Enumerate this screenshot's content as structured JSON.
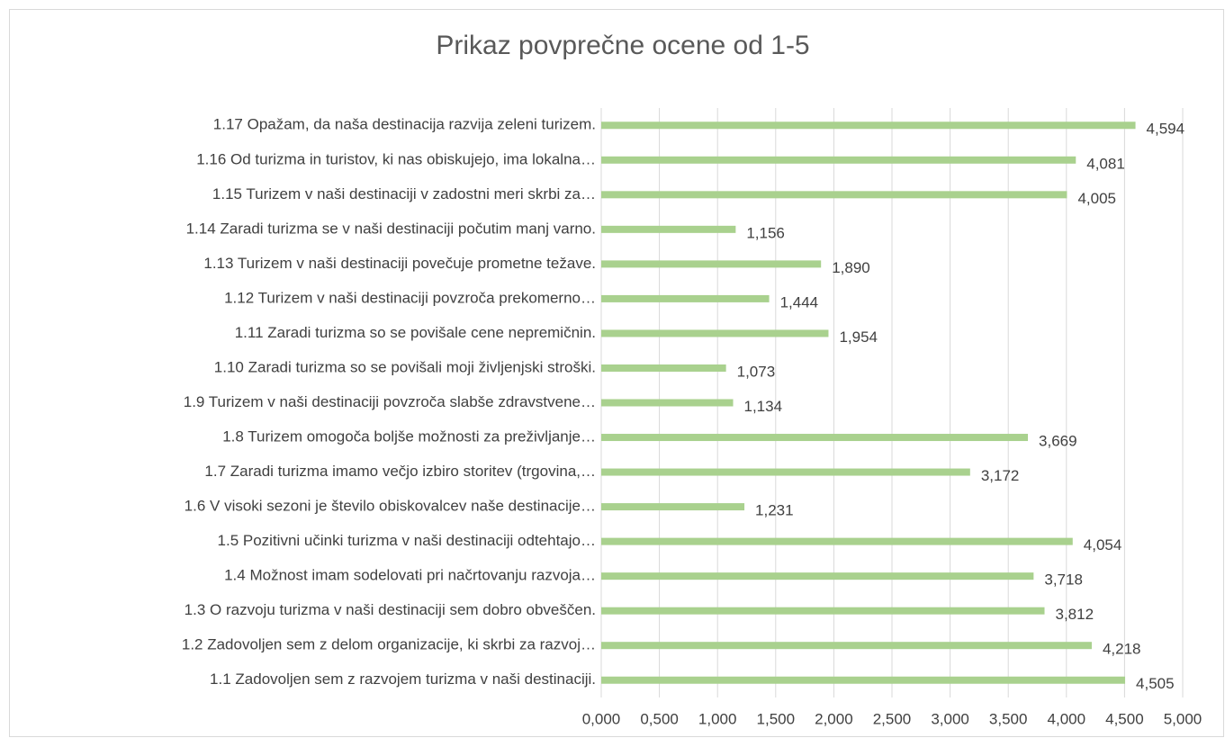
{
  "chart_data": {
    "type": "barh",
    "title": "Prikaz povprečne ocene od 1-5",
    "categories": [
      "1.17 Opažam, da naša destinacija razvija zeleni turizem.",
      "1.16 Od turizma in turistov, ki nas obiskujejo, ima lokalna…",
      "1.15 Turizem v naši destinaciji v zadostni meri skrbi za…",
      "1.14 Zaradi turizma se v naši destinaciji počutim manj varno.",
      "1.13 Turizem v naši destinaciji povečuje prometne težave.",
      "1.12 Turizem v naši destinaciji povzroča prekomerno…",
      "1.11 Zaradi turizma so se povišale cene nepremičnin.",
      "1.10 Zaradi turizma so se povišali moji življenjski stroški.",
      "1.9 Turizem v naši destinaciji povzroča slabše zdravstvene…",
      "1.8 Turizem omogoča boljše možnosti za preživljanje…",
      "1.7 Zaradi turizma imamo večjo izbiro storitev (trgovina,…",
      "1.6 V visoki sezoni je število obiskovalcev naše destinacije…",
      "1.5 Pozitivni učinki turizma v naši destinaciji odtehtajo…",
      "1.4 Možnost imam sodelovati pri načrtovanju razvoja…",
      "1.3 O razvoju turizma v naši destinaciji sem dobro obveščen.",
      "1.2 Zadovoljen sem z delom organizacije, ki skrbi za razvoj…",
      "1.1 Zadovoljen sem z razvojem turizma v naši destinaciji."
    ],
    "values": [
      4.594,
      4.081,
      4.005,
      1.156,
      1.89,
      1.444,
      1.954,
      1.073,
      1.134,
      3.669,
      3.172,
      1.231,
      4.054,
      3.718,
      3.812,
      4.218,
      4.505
    ],
    "value_labels": [
      "4,594",
      "4,081",
      "4,005",
      "1,156",
      "1,890",
      "1,444",
      "1,954",
      "1,073",
      "1,134",
      "3,669",
      "3,172",
      "1,231",
      "4,054",
      "3,718",
      "3,812",
      "4,218",
      "4,505"
    ],
    "color": "#a9d18e",
    "xlim": [
      0,
      5
    ],
    "xticks": [
      {
        "value": 0,
        "label": "0,000"
      },
      {
        "value": 0.5,
        "label": "0,500"
      },
      {
        "value": 1,
        "label": "1,000"
      },
      {
        "value": 1.5,
        "label": "1,500"
      },
      {
        "value": 2,
        "label": "2,000"
      },
      {
        "value": 2.5,
        "label": "2,500"
      },
      {
        "value": 3,
        "label": "3,000"
      },
      {
        "value": 3.5,
        "label": "3,500"
      },
      {
        "value": 4,
        "label": "4,000"
      },
      {
        "value": 4.5,
        "label": "4,500"
      },
      {
        "value": 5,
        "label": "5,000"
      }
    ],
    "grid": true
  }
}
